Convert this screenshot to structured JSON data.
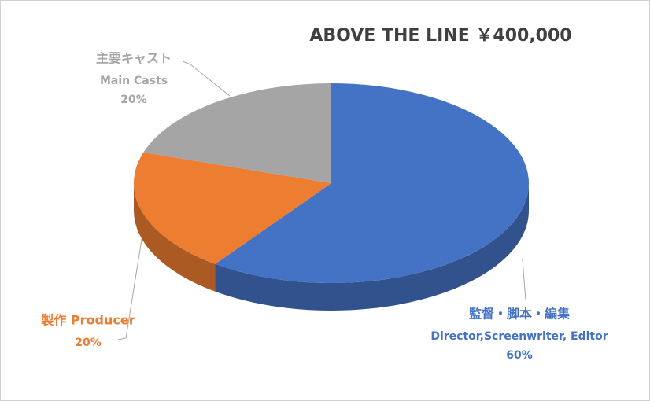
{
  "chart_data": {
    "type": "pie3d",
    "title": "ABOVE THE LINE ￥400,000",
    "categories": [
      [
        "監督・脚本・編集",
        "Director,Screenwriter, Editor"
      ],
      [
        "製作 Producer"
      ],
      [
        "主要キャスト",
        "Main Casts"
      ]
    ],
    "values": [
      60,
      20,
      20
    ],
    "value_labels": [
      "60%",
      "20%",
      "20%"
    ],
    "colors": [
      "#4472c4",
      "#ed7d31",
      "#a5a5a5"
    ]
  }
}
